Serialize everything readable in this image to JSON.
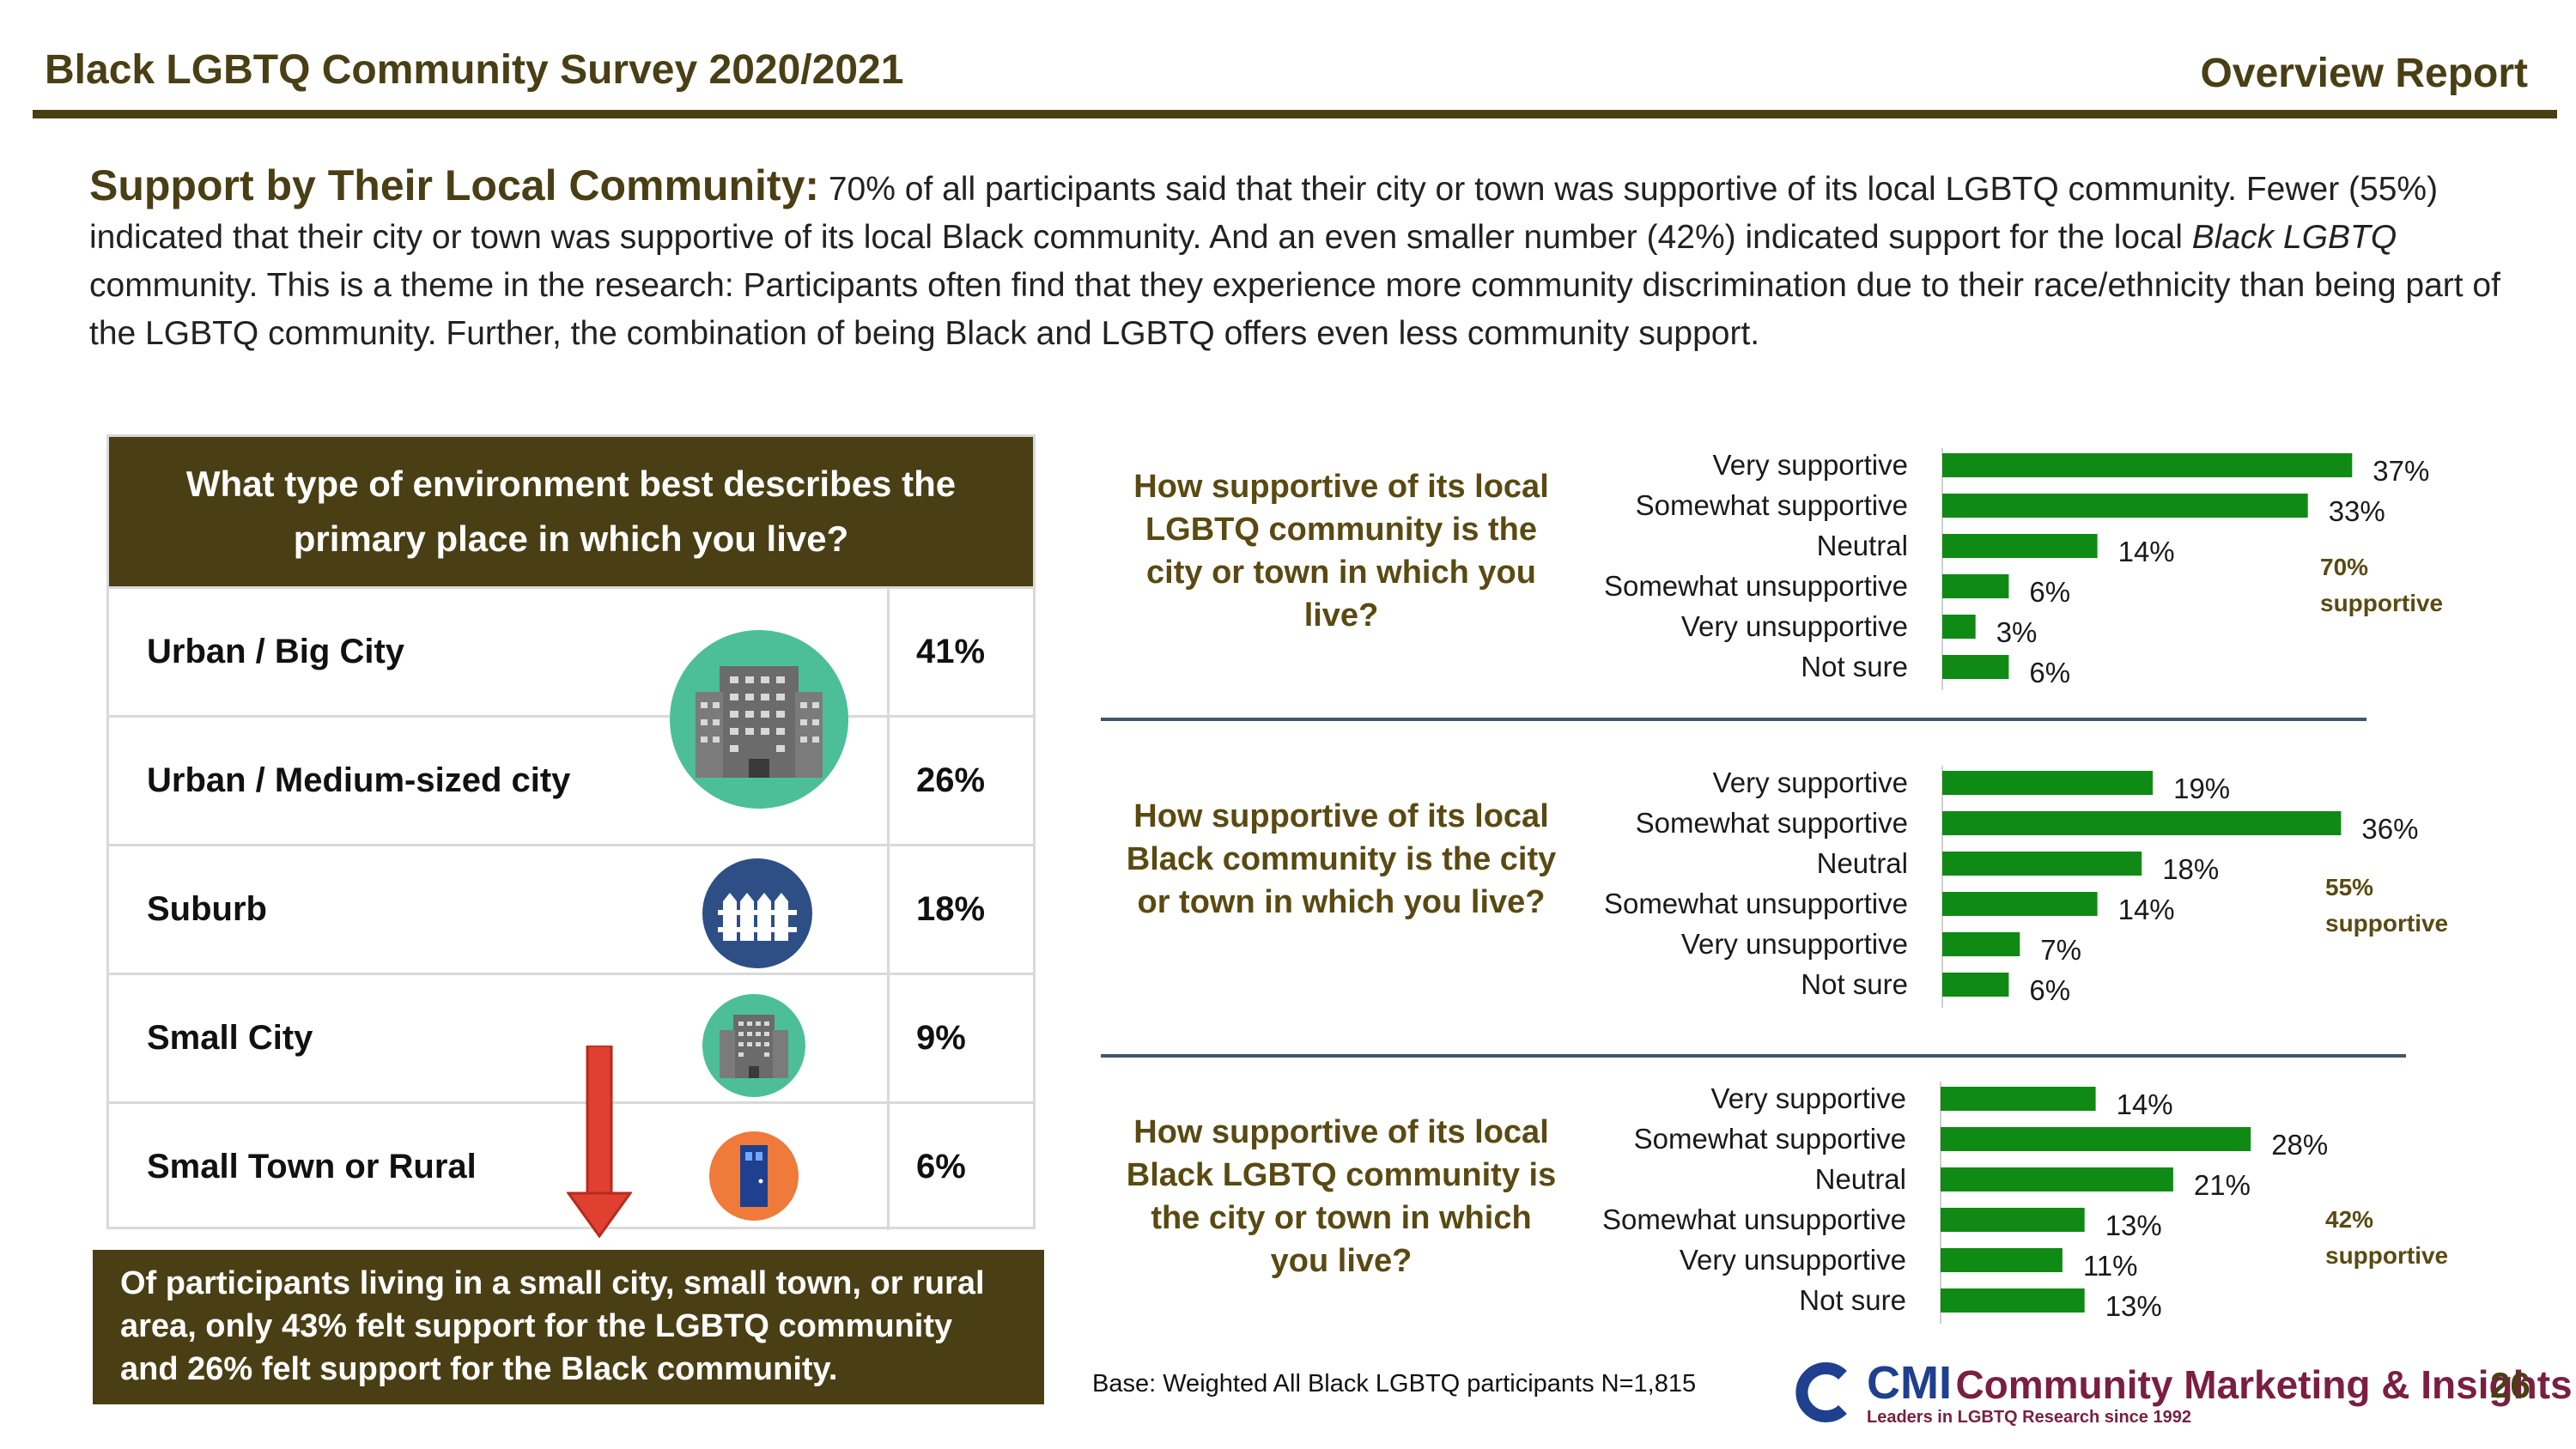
{
  "header": {
    "title": "Black LGBTQ Community Survey 2020/2021",
    "report": "Overview Report"
  },
  "intro": {
    "lead": "Support by Their Local Community:",
    "text1": " 70% of all participants said that their city or town was supportive of its local LGBTQ community. Fewer (55%) indicated that their city or town was supportive of its local Black community. And an even smaller number (42%) indicated support for the local ",
    "italic": "Black LGBTQ",
    "text2": " community. This is a theme in the research: Participants often find that they experience more community discrimination due to their race/ethnicity than being part of the LGBTQ community. Further, the combination of being Black and LGBTQ offers even less community support."
  },
  "environment": {
    "question": "What type of environment best describes the primary place in which you live?",
    "rows": [
      {
        "label": "Urban / Big City",
        "pct": "41%"
      },
      {
        "label": "Urban / Medium-sized city",
        "pct": "26%"
      },
      {
        "label": "Suburb",
        "pct": "18%"
      },
      {
        "label": "Small City",
        "pct": "9%"
      },
      {
        "label": "Small Town or Rural",
        "pct": "6%"
      }
    ],
    "icons": [
      "building-icon",
      "suburb-fence-icon",
      "small-city-building-icon",
      "rural-door-icon"
    ],
    "note": "Of participants living in a small city, small town, or rural area, only 43% felt support for the LGBTQ community and 26% felt support for the Black community."
  },
  "chart_data": [
    {
      "type": "bar",
      "orientation": "horizontal",
      "title": "How supportive of its local LGBTQ community is the city or town in which you live?",
      "categories": [
        "Very supportive",
        "Somewhat supportive",
        "Neutral",
        "Somewhat unsupportive",
        "Very unsupportive",
        "Not sure"
      ],
      "values": [
        37,
        33,
        14,
        6,
        3,
        6
      ],
      "value_labels": [
        "37%",
        "33%",
        "14%",
        "6%",
        "3%",
        "6%"
      ],
      "annotation": [
        "70%",
        "supportive"
      ],
      "color": "#0f8a14"
    },
    {
      "type": "bar",
      "orientation": "horizontal",
      "title": "How supportive of its local Black community is the city or town in which you live?",
      "categories": [
        "Very supportive",
        "Somewhat supportive",
        "Neutral",
        "Somewhat unsupportive",
        "Very unsupportive",
        "Not sure"
      ],
      "values": [
        19,
        36,
        18,
        14,
        7,
        6
      ],
      "value_labels": [
        "19%",
        "36%",
        "18%",
        "14%",
        "7%",
        "6%"
      ],
      "annotation": [
        "55%",
        "supportive"
      ],
      "color": "#0f8a14"
    },
    {
      "type": "bar",
      "orientation": "horizontal",
      "title": "How supportive of its local Black LGBTQ community is the city or town in which you live?",
      "categories": [
        "Very supportive",
        "Somewhat supportive",
        "Neutral",
        "Somewhat unsupportive",
        "Very unsupportive",
        "Not sure"
      ],
      "values": [
        14,
        28,
        21,
        13,
        11,
        13
      ],
      "value_labels": [
        "14%",
        "28%",
        "21%",
        "13%",
        "11%",
        "13%"
      ],
      "annotation": [
        "42%",
        "supportive"
      ],
      "color": "#0f8a14"
    }
  ],
  "footer": {
    "base": "Base: Weighted All Black LGBTQ participants  N=1,815",
    "logo_cmi": "CMI",
    "logo_name": "Community Marketing & Insights",
    "logo_tagline": "Leaders in LGBTQ Research since 1992",
    "page": "26"
  },
  "colors": {
    "olive": "#4a3f14",
    "bar": "#0f8a14",
    "divider": "#44546a"
  }
}
